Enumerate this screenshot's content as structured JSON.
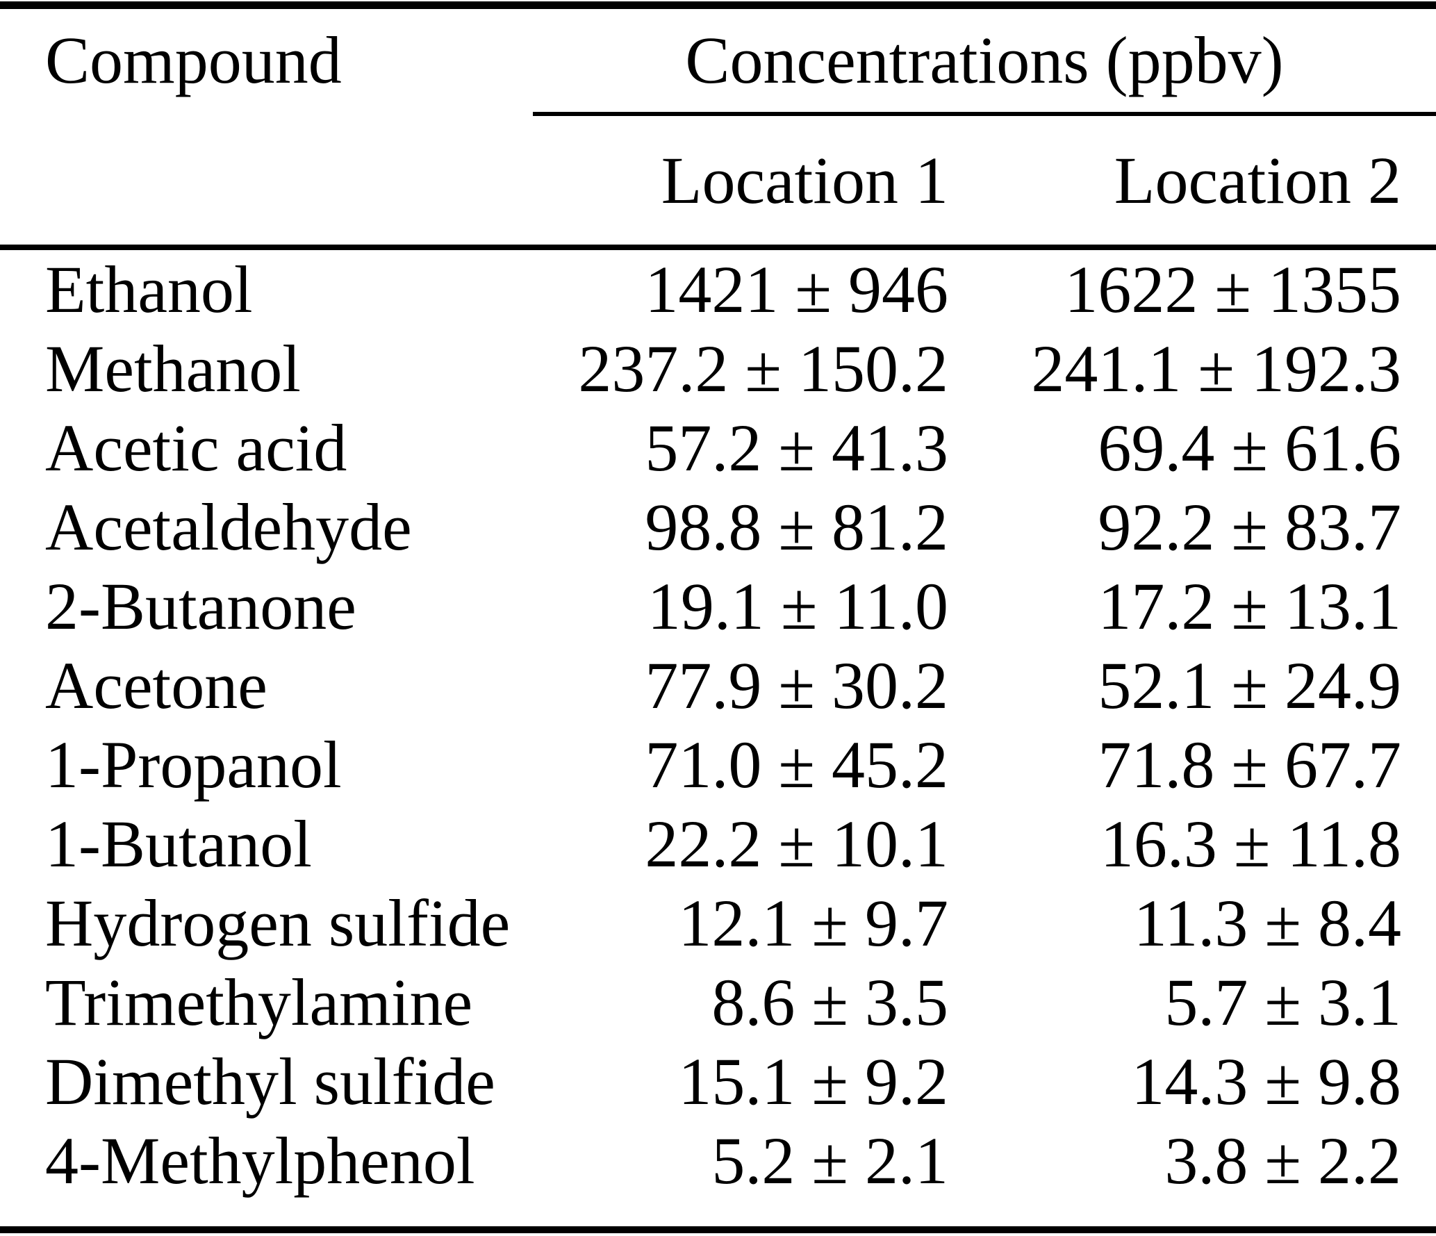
{
  "table": {
    "headers": {
      "compound": "Compound",
      "group": "Concentrations (ppbv)",
      "loc1": "Location 1",
      "loc2": "Location 2"
    },
    "rows": [
      {
        "compound": "Ethanol",
        "loc1": "1421 ± 946",
        "loc2": "1622 ± 1355"
      },
      {
        "compound": "Methanol",
        "loc1": "237.2 ± 150.2",
        "loc2": "241.1 ± 192.3"
      },
      {
        "compound": "Acetic acid",
        "loc1": "57.2 ± 41.3",
        "loc2": "69.4 ± 61.6"
      },
      {
        "compound": "Acetaldehyde",
        "loc1": "98.8 ± 81.2",
        "loc2": "92.2 ± 83.7"
      },
      {
        "compound": "2-Butanone",
        "loc1": "19.1 ± 11.0",
        "loc2": "17.2 ± 13.1"
      },
      {
        "compound": "Acetone",
        "loc1": "77.9 ± 30.2",
        "loc2": "52.1 ± 24.9"
      },
      {
        "compound": "1-Propanol",
        "loc1": "71.0 ± 45.2",
        "loc2": "71.8 ± 67.7"
      },
      {
        "compound": "1-Butanol",
        "loc1": "22.2 ± 10.1",
        "loc2": "16.3 ± 11.8"
      },
      {
        "compound": "Hydrogen sulfide",
        "loc1": "12.1 ± 9.7",
        "loc2": "11.3 ± 8.4"
      },
      {
        "compound": "Trimethylamine",
        "loc1": "8.6 ± 3.5",
        "loc2": "5.7 ± 3.1"
      },
      {
        "compound": "Dimethyl sulfide",
        "loc1": "15.1 ± 9.2",
        "loc2": "14.3 ± 9.8"
      },
      {
        "compound": "4-Methylphenol",
        "loc1": "5.2 ± 2.1",
        "loc2": "3.8 ± 2.2"
      }
    ]
  }
}
